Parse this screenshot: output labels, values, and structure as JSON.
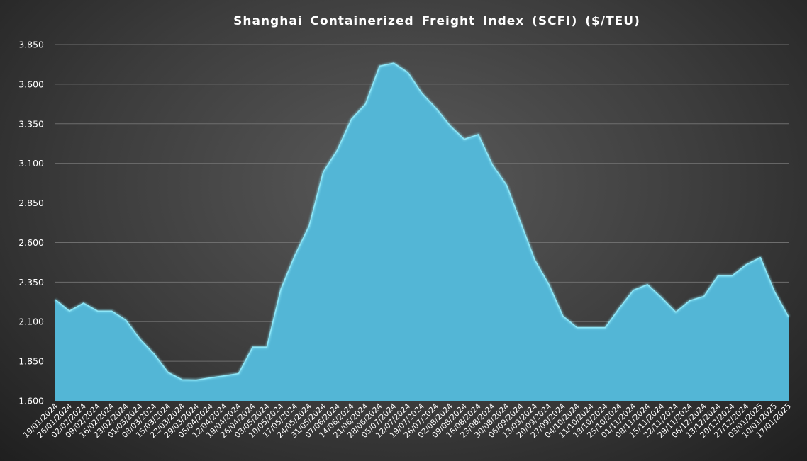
{
  "chart_data": {
    "type": "area",
    "title": "Shanghai Containerized Freight Index  (SCFI) ($/TEU)",
    "xlabel": "",
    "ylabel": "",
    "ylim": [
      1600,
      3850
    ],
    "yticks": [
      1600,
      1850,
      2100,
      2350,
      2600,
      2850,
      3100,
      3350,
      3600,
      3850
    ],
    "ytick_labels": [
      "1.600",
      "1.850",
      "2.100",
      "2.350",
      "2.600",
      "2.850",
      "3.100",
      "3.350",
      "3.600",
      "3.850"
    ],
    "grid": true,
    "legend": "none",
    "colors": {
      "fill": "#53b6d6",
      "edge": "#8ee6f7",
      "grid": "#6e6e6e",
      "text": "#ffffff"
    },
    "x": [
      "19/01/2024",
      "26/01/2024",
      "02/02/2024",
      "09/02/2024",
      "16/02/2024",
      "23/02/2024",
      "01/03/2024",
      "08/03/2024",
      "15/03/2024",
      "22/03/2024",
      "29/03/2024",
      "05/04/2024",
      "12/04/2024",
      "19/04/2024",
      "26/04/2024",
      "03/05/2024",
      "10/05/2024",
      "17/05/2024",
      "24/05/2024",
      "31/05/2024",
      "07/06/2024",
      "14/06/2024",
      "21/06/2024",
      "28/06/2024",
      "05/07/2024",
      "12/07/2024",
      "19/07/2024",
      "26/07/2024",
      "02/08/2024",
      "09/08/2024",
      "16/08/2024",
      "23/08/2024",
      "30/08/2024",
      "06/09/2024",
      "13/09/2024",
      "20/09/2024",
      "27/09/2024",
      "04/10/2024",
      "11/10/2024",
      "18/10/2024",
      "25/10/2024",
      "01/11/2024",
      "08/11/2024",
      "15/11/2024",
      "22/11/2024",
      "29/11/2024",
      "06/12/2024",
      "13/12/2024",
      "20/12/2024",
      "27/12/2024",
      "03/01/2025",
      "10/01/2025",
      "17/01/2025"
    ],
    "values": [
      2239,
      2167,
      2217,
      2167,
      2167,
      2110,
      1990,
      1896,
      1779,
      1733,
      1731,
      1745,
      1758,
      1772,
      1939,
      1939,
      2306,
      2520,
      2704,
      3044,
      3184,
      3379,
      3475,
      3714,
      3733,
      3674,
      3542,
      3448,
      3337,
      3252,
      3282,
      3090,
      2963,
      2727,
      2490,
      2335,
      2135,
      2062,
      2062,
      2062,
      2185,
      2299,
      2334,
      2251,
      2160,
      2233,
      2260,
      2390,
      2390,
      2460,
      2505,
      2290,
      2130
    ]
  }
}
